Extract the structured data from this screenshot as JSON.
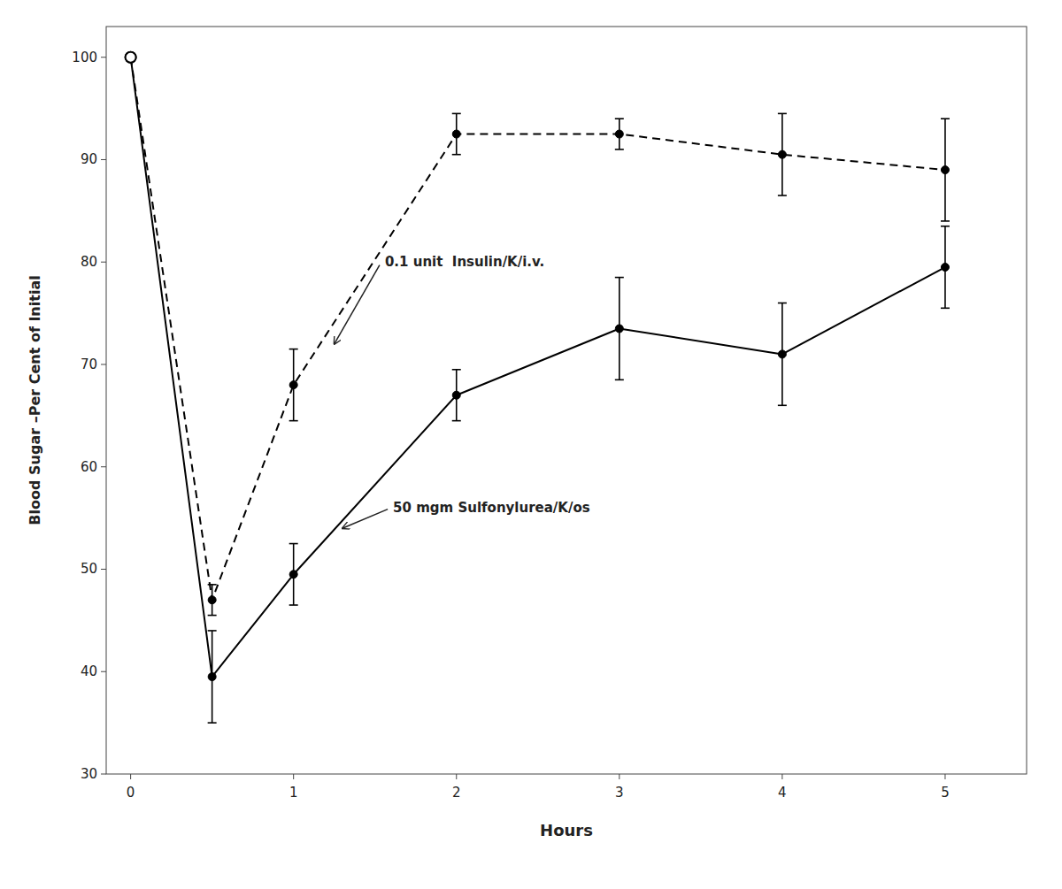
{
  "chart_data": {
    "type": "line",
    "title": "",
    "xlabel": "Hours",
    "ylabel": "Blood Sugar –Per Cent of Initial",
    "x": [
      0,
      0.5,
      1,
      2,
      3,
      4,
      5
    ],
    "series": [
      {
        "color": "black",
        "line_style": "dashed",
        "marker": "circle",
        "values": [
          100,
          47,
          68,
          92.5,
          92.5,
          90.5,
          89
        ],
        "errors": [
          0,
          1.5,
          3.5,
          2,
          1.5,
          4,
          5
        ]
      },
      {
        "color": "black",
        "line_style": "solid",
        "marker": "circle",
        "values": [
          100,
          39.5,
          49.5,
          67,
          73.5,
          71,
          79.5
        ],
        "errors": [
          0,
          4.5,
          3,
          2.5,
          5,
          5,
          4
        ]
      }
    ],
    "annotations": [
      {
        "text": "0.1 unit  Insulin/K/i.v.",
        "xy": [
          1.25,
          72
        ],
        "xytext": [
          1.55,
          80
        ]
      },
      {
        "text": "50 mgm Sulfonylurea/K/os",
        "xy": [
          1.3,
          54
        ],
        "xytext": [
          1.6,
          56
        ]
      }
    ],
    "xlim": [
      -0.15,
      5.5
    ],
    "ylim": [
      30,
      103
    ],
    "xticks": [
      0,
      1,
      2,
      3,
      4,
      5
    ],
    "yticks": [
      30,
      40,
      50,
      60,
      70,
      80,
      90,
      100
    ],
    "grid": false
  }
}
